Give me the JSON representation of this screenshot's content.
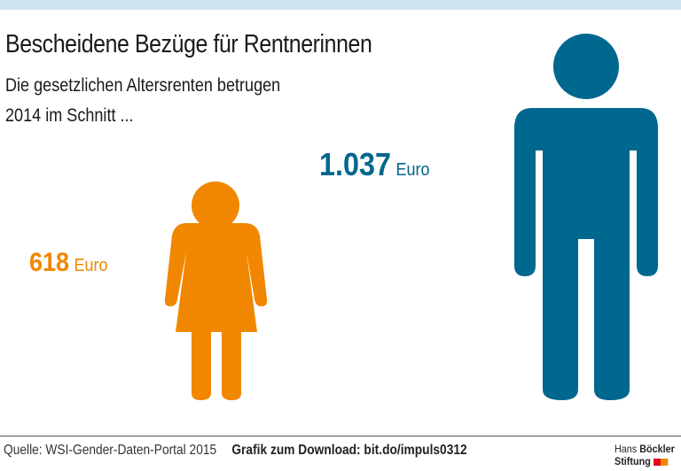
{
  "title": "Bescheidene Bezüge für Rentnerinnen",
  "subtitle_line1": "Die gesetzlichen Altersrenten betrugen",
  "subtitle_line2": "2014 im Schnitt ...",
  "chart_data": {
    "type": "pictogram",
    "title": "Bescheidene Bezüge für Rentnerinnen",
    "categories": [
      "Frauen",
      "Männer"
    ],
    "values": [
      618,
      1037
    ],
    "value_labels": [
      "618",
      "1.037"
    ],
    "unit": "Euro",
    "year": 2014,
    "colors": {
      "women": "#f18700",
      "men": "#00678e"
    }
  },
  "footer": {
    "source": "Quelle: WSI-Gender-Daten-Portal 2015",
    "download": "Grafik zum Download: bit.do/impuls0312",
    "logo_line1_a": "Hans",
    "logo_line1_b": "Böckler",
    "logo_line2": "Stiftung"
  }
}
